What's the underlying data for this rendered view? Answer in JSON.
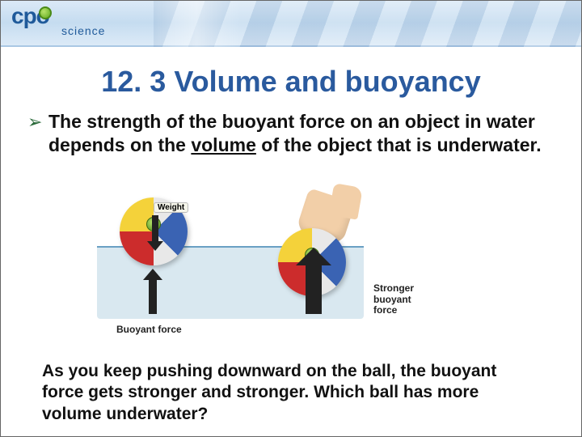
{
  "logo": {
    "line1": "cpo",
    "line2": "science",
    "colors": {
      "text": "#1f5a9a",
      "ball": "#5fa81e"
    }
  },
  "title": {
    "text": "12. 3 Volume and buoyancy",
    "color": "#2a5a9e",
    "fontsize": 36
  },
  "bullet": {
    "arrow_color": "#2a6a3a",
    "pre": "The strength of the buoyant force on an object in water depends on the ",
    "underlined": "volume",
    "post": " of the object that is underwater.",
    "fontsize": 23,
    "text_color": "#111111"
  },
  "diagram": {
    "type": "infographic",
    "background_color": "#ffffff",
    "water_color": "#d9e8f0",
    "water_surface_color": "#6aa0c4",
    "ball_colors": {
      "white": "#e8e8e8",
      "blue": "#3a63b3",
      "red": "#cc2c2c",
      "yellow": "#f4d23a",
      "cap": "#4a8a16"
    },
    "hand_color": "#f2cfa8",
    "arrow_color": "#222222",
    "labels": {
      "weight": "Weight",
      "buoyant_force": "Buoyant force",
      "stronger_buoyant_force_l1": "Stronger",
      "stronger_buoyant_force_l2": "buoyant",
      "stronger_buoyant_force_l3": "force"
    },
    "arrows": {
      "weight_down_length": 34,
      "buoyant_up_small_length": 44,
      "buoyant_up_big_length": 64,
      "buoyant_up_big_width": 20
    }
  },
  "bottom": {
    "text": "As you keep pushing downward on the ball, the buoyant force gets stronger and stronger. Which ball has more volume underwater?",
    "fontsize": 21,
    "text_color": "#111111"
  }
}
